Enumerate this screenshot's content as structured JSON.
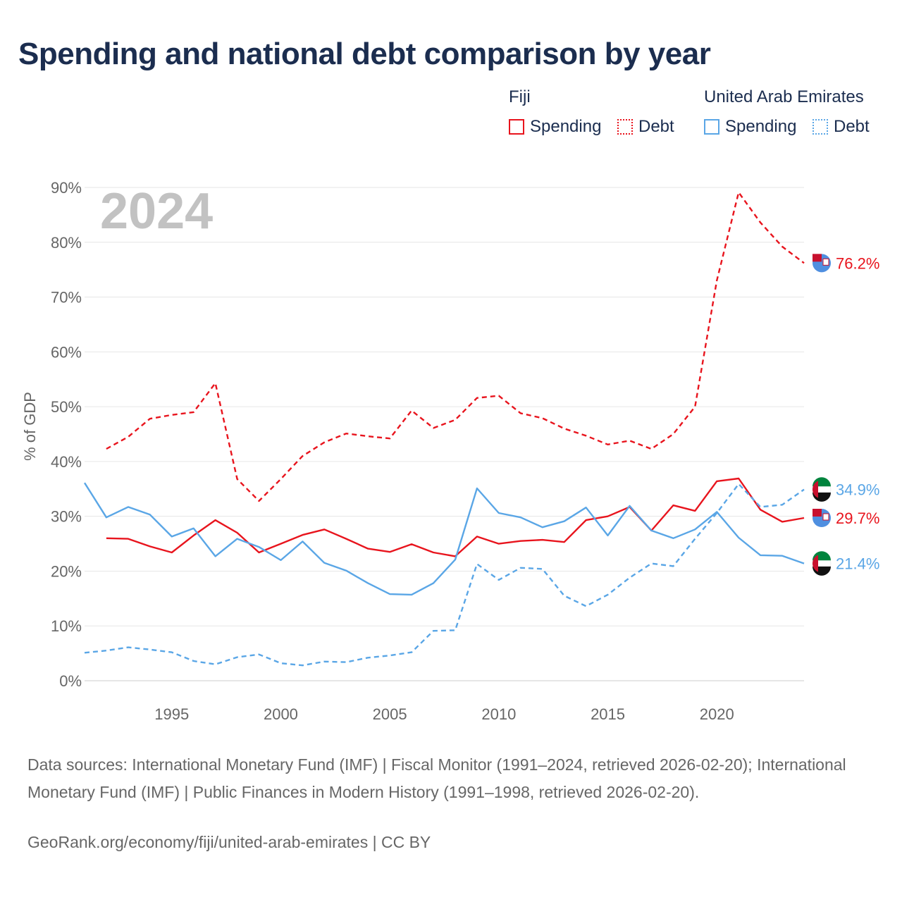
{
  "title": "Spending and national debt comparison by year",
  "legend": {
    "groups": [
      {
        "name": "Fiji",
        "color": "#e8141d",
        "items": [
          {
            "label": "Spending",
            "style": "solid"
          },
          {
            "label": "Debt",
            "style": "dotted"
          }
        ]
      },
      {
        "name": "United Arab Emirates",
        "color": "#5aa6e6",
        "items": [
          {
            "label": "Spending",
            "style": "solid"
          },
          {
            "label": "Debt",
            "style": "dotted"
          }
        ]
      }
    ]
  },
  "year_label": "2024",
  "sources": "Data sources: International Monetary Fund (IMF) | Fiscal Monitor (1991–2024, retrieved 2026-02-20); International Monetary Fund (IMF) | Public Finances in Modern History (1991–1998, retrieved 2026-02-20).",
  "credit": "GeoRank.org/economy/fiji/united-arab-emirates | CC BY",
  "chart_data": {
    "type": "line",
    "title": "Spending and national debt comparison by year",
    "xlabel": "",
    "ylabel": "% of GDP",
    "xlim": [
      1991,
      2024
    ],
    "ylim": [
      0,
      90
    ],
    "x_ticks": [
      1995,
      2000,
      2005,
      2010,
      2015,
      2020
    ],
    "y_ticks": [
      "0%",
      "10%",
      "20%",
      "30%",
      "40%",
      "50%",
      "60%",
      "70%",
      "80%",
      "90%"
    ],
    "grid": true,
    "legend_position": "top-right",
    "series": [
      {
        "name": "Fiji Debt",
        "country": "Fiji",
        "metric": "Debt",
        "color": "#e8141d",
        "dash": true,
        "end_label": "76.2%",
        "points": [
          [
            1992,
            42.3
          ],
          [
            1993,
            44.5
          ],
          [
            1994,
            47.8
          ],
          [
            1995,
            48.5
          ],
          [
            1996,
            49.0
          ],
          [
            1997,
            54.3
          ],
          [
            1998,
            36.8
          ],
          [
            1999,
            32.8
          ],
          [
            2000,
            36.8
          ],
          [
            2001,
            41.0
          ],
          [
            2002,
            43.5
          ],
          [
            2003,
            45.1
          ],
          [
            2004,
            44.6
          ],
          [
            2005,
            44.2
          ],
          [
            2006,
            49.3
          ],
          [
            2007,
            46.1
          ],
          [
            2008,
            47.6
          ],
          [
            2009,
            51.6
          ],
          [
            2010,
            52.0
          ],
          [
            2011,
            48.8
          ],
          [
            2012,
            47.9
          ],
          [
            2013,
            46.0
          ],
          [
            2014,
            44.7
          ],
          [
            2015,
            43.1
          ],
          [
            2016,
            43.8
          ],
          [
            2017,
            42.3
          ],
          [
            2018,
            45.0
          ],
          [
            2019,
            50.0
          ],
          [
            2020,
            73.0
          ],
          [
            2021,
            89.1
          ],
          [
            2022,
            83.6
          ],
          [
            2023,
            79.2
          ],
          [
            2024,
            76.2
          ]
        ]
      },
      {
        "name": "Fiji Spending",
        "country": "Fiji",
        "metric": "Spending",
        "color": "#e8141d",
        "dash": false,
        "end_label": "29.7%",
        "points": [
          [
            1992,
            26.0
          ],
          [
            1993,
            25.9
          ],
          [
            1994,
            24.5
          ],
          [
            1995,
            23.4
          ],
          [
            1996,
            26.5
          ],
          [
            1997,
            29.3
          ],
          [
            1998,
            27.0
          ],
          [
            1999,
            23.4
          ],
          [
            2000,
            25.0
          ],
          [
            2001,
            26.6
          ],
          [
            2002,
            27.6
          ],
          [
            2003,
            25.9
          ],
          [
            2004,
            24.1
          ],
          [
            2005,
            23.5
          ],
          [
            2006,
            24.9
          ],
          [
            2007,
            23.4
          ],
          [
            2008,
            22.7
          ],
          [
            2009,
            26.3
          ],
          [
            2010,
            25.0
          ],
          [
            2011,
            25.5
          ],
          [
            2012,
            25.7
          ],
          [
            2013,
            25.3
          ],
          [
            2014,
            29.3
          ],
          [
            2015,
            30.0
          ],
          [
            2016,
            31.7
          ],
          [
            2017,
            27.4
          ],
          [
            2018,
            32.0
          ],
          [
            2019,
            31.0
          ],
          [
            2020,
            36.4
          ],
          [
            2021,
            36.9
          ],
          [
            2022,
            31.2
          ],
          [
            2023,
            29.0
          ],
          [
            2024,
            29.7
          ]
        ]
      },
      {
        "name": "United Arab Emirates Spending",
        "country": "United Arab Emirates",
        "metric": "Spending",
        "color": "#5aa6e6",
        "dash": false,
        "end_label": "21.4%",
        "points": [
          [
            1991,
            36.1
          ],
          [
            1992,
            29.8
          ],
          [
            1993,
            31.7
          ],
          [
            1994,
            30.3
          ],
          [
            1995,
            26.3
          ],
          [
            1996,
            27.8
          ],
          [
            1997,
            22.7
          ],
          [
            1998,
            25.9
          ],
          [
            1999,
            24.4
          ],
          [
            2000,
            22.0
          ],
          [
            2001,
            25.4
          ],
          [
            2002,
            21.5
          ],
          [
            2003,
            20.1
          ],
          [
            2004,
            17.8
          ],
          [
            2005,
            15.8
          ],
          [
            2006,
            15.7
          ],
          [
            2007,
            17.8
          ],
          [
            2008,
            22.1
          ],
          [
            2009,
            35.1
          ],
          [
            2010,
            30.6
          ],
          [
            2011,
            29.8
          ],
          [
            2012,
            28.0
          ],
          [
            2013,
            29.1
          ],
          [
            2014,
            31.6
          ],
          [
            2015,
            26.5
          ],
          [
            2016,
            31.9
          ],
          [
            2017,
            27.4
          ],
          [
            2018,
            26.0
          ],
          [
            2019,
            27.6
          ],
          [
            2020,
            30.8
          ],
          [
            2021,
            26.1
          ],
          [
            2022,
            22.9
          ],
          [
            2023,
            22.8
          ],
          [
            2024,
            21.4
          ]
        ]
      },
      {
        "name": "United Arab Emirates Debt",
        "country": "United Arab Emirates",
        "metric": "Debt",
        "color": "#5aa6e6",
        "dash": true,
        "end_label": "34.9%",
        "points": [
          [
            1991,
            5.1
          ],
          [
            1992,
            5.5
          ],
          [
            1993,
            6.1
          ],
          [
            1994,
            5.7
          ],
          [
            1995,
            5.2
          ],
          [
            1996,
            3.6
          ],
          [
            1997,
            3.0
          ],
          [
            1998,
            4.3
          ],
          [
            1999,
            4.8
          ],
          [
            2000,
            3.2
          ],
          [
            2001,
            2.8
          ],
          [
            2002,
            3.5
          ],
          [
            2003,
            3.4
          ],
          [
            2004,
            4.2
          ],
          [
            2005,
            4.6
          ],
          [
            2006,
            5.2
          ],
          [
            2007,
            9.1
          ],
          [
            2008,
            9.2
          ],
          [
            2009,
            21.3
          ],
          [
            2010,
            18.4
          ],
          [
            2011,
            20.6
          ],
          [
            2012,
            20.4
          ],
          [
            2013,
            15.5
          ],
          [
            2014,
            13.6
          ],
          [
            2015,
            15.7
          ],
          [
            2016,
            18.8
          ],
          [
            2017,
            21.4
          ],
          [
            2018,
            20.9
          ],
          [
            2019,
            25.9
          ],
          [
            2020,
            30.6
          ],
          [
            2021,
            35.9
          ],
          [
            2022,
            31.7
          ],
          [
            2023,
            32.1
          ],
          [
            2024,
            34.9
          ]
        ]
      }
    ]
  }
}
